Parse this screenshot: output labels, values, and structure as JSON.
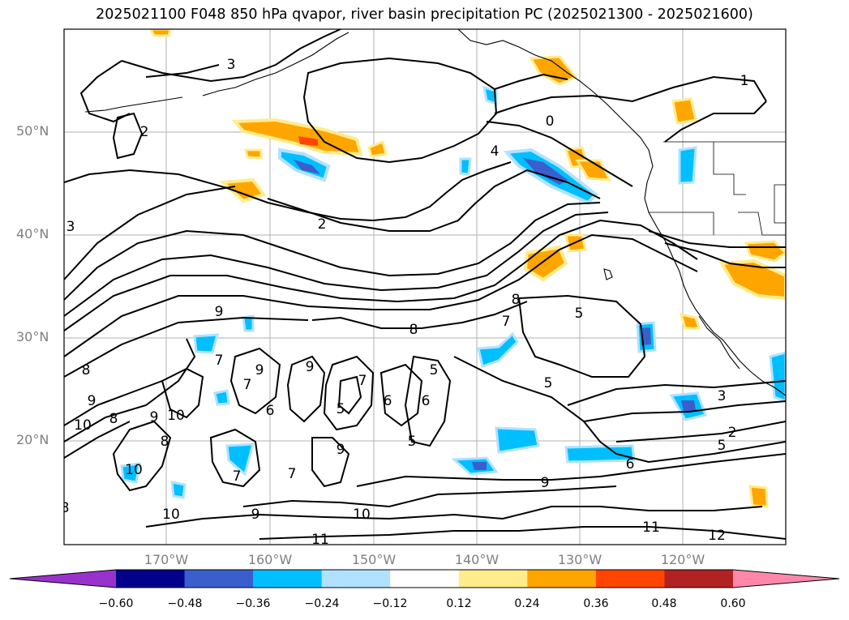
{
  "title": "2025021100 F048 850 hPa qvapor, river basin precipitation PC (2025021300 - 2025021600)",
  "latitude_labels": [
    "50°N",
    "40°N",
    "30°N",
    "20°N"
  ],
  "longitude_labels": [
    "170°W",
    "160°W",
    "150°W",
    "140°W",
    "130°W",
    "120°W"
  ],
  "colorbar": {
    "ticks": [
      "−0.60",
      "−0.48",
      "−0.36",
      "−0.24",
      "−0.12",
      "0.12",
      "0.24",
      "0.36",
      "0.48",
      "0.60"
    ],
    "colors": [
      "#9932cc",
      "#00008b",
      "#3a5fcd",
      "#00bfff",
      "#b0e2ff",
      "#ffffff",
      "#ffec8b",
      "#ffa500",
      "#ff4500",
      "#b22222",
      "#ff88aa"
    ]
  },
  "contour_labels": [
    "3",
    "2",
    "1",
    "0",
    "4",
    "2",
    "3",
    "9",
    "7",
    "8",
    "9",
    "8",
    "9",
    "10",
    "9",
    "10",
    "8",
    "6",
    "9",
    "7",
    "9",
    "5",
    "6",
    "6",
    "7",
    "5",
    "5",
    "8",
    "8",
    "7",
    "5",
    "5",
    "3",
    "2",
    "5",
    "6",
    "9",
    "10",
    "11",
    "11",
    "12",
    "10",
    "9",
    "8",
    "10",
    "7",
    "7"
  ],
  "colors": {
    "land_line": "#000000",
    "grid": "#b0b0b0",
    "axis_label": "#7f7f7f"
  }
}
